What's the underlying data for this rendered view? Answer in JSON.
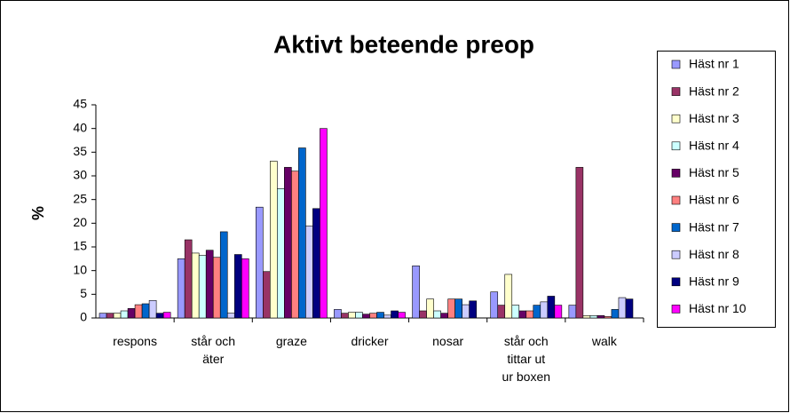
{
  "chart_data": {
    "type": "bar",
    "title": "Aktivt beteende preop",
    "y_label": "%",
    "categories": [
      "respons",
      "står och äter",
      "graze",
      "dricker",
      "nosar",
      "står och tittar ut ur boxen",
      "walk"
    ],
    "series": [
      {
        "name": "Häst nr 1",
        "color": "#9999FF",
        "values": [
          1,
          12.5,
          23.4,
          1.8,
          11,
          5.5,
          2.7
        ]
      },
      {
        "name": "Häst nr 2",
        "color": "#993366",
        "values": [
          1,
          16.5,
          9.8,
          1,
          1.5,
          2.7,
          31.8
        ]
      },
      {
        "name": "Häst nr 3",
        "color": "#FFFFCC",
        "values": [
          1,
          13.7,
          33.1,
          1.2,
          4,
          9.2,
          0.5
        ]
      },
      {
        "name": "Häst nr 4",
        "color": "#CCFFFF",
        "values": [
          1.5,
          13.2,
          27.3,
          1.2,
          1.5,
          2.7,
          0.5
        ]
      },
      {
        "name": "Häst nr 5",
        "color": "#660066",
        "values": [
          2,
          14.3,
          31.8,
          0.8,
          1,
          1.5,
          0.5
        ]
      },
      {
        "name": "Häst nr 6",
        "color": "#FF8080",
        "values": [
          2.8,
          12.8,
          31,
          1,
          4,
          1.5,
          0.3
        ]
      },
      {
        "name": "Häst nr 7",
        "color": "#0066CC",
        "values": [
          3,
          18.2,
          35.9,
          1.2,
          4,
          2.7,
          1.8
        ]
      },
      {
        "name": "Häst nr 8",
        "color": "#CCCCFF",
        "values": [
          3.7,
          1,
          19.4,
          0.6,
          2.8,
          3.4,
          4.3
        ]
      },
      {
        "name": "Häst nr 9",
        "color": "#000080",
        "values": [
          1,
          13.4,
          23.1,
          1.5,
          3.6,
          4.6,
          4
        ]
      },
      {
        "name": "Häst nr 10",
        "color": "#FF00FF",
        "values": [
          1.2,
          12.5,
          40,
          1.2,
          0,
          2.7,
          0
        ]
      }
    ],
    "ylim": [
      0,
      45
    ],
    "yticks": [
      0,
      5,
      10,
      15,
      20,
      25,
      30,
      35,
      40,
      45
    ],
    "legend": "right"
  }
}
